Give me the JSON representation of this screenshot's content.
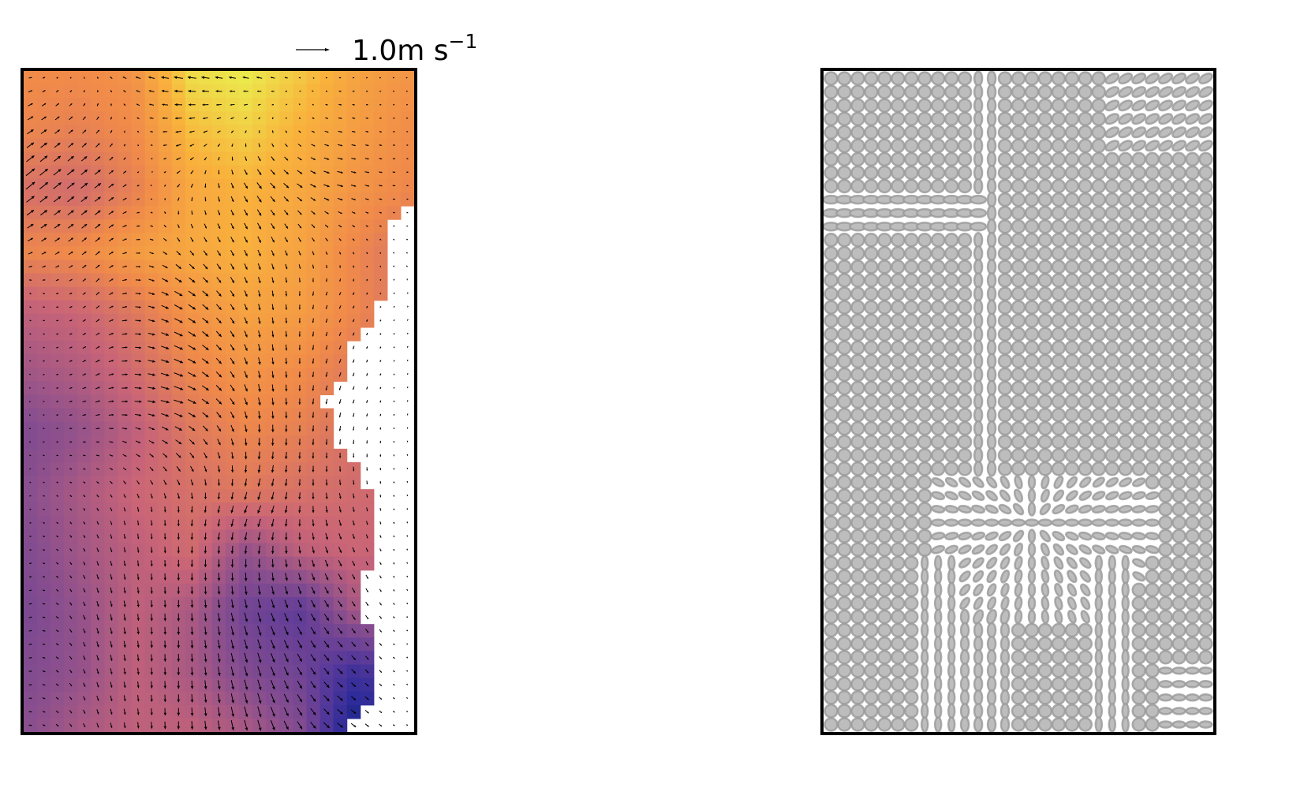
{
  "chart_data": [
    {
      "type": "heatmap",
      "panel": "left",
      "overlay": "quiver",
      "colormap": "plasma-like",
      "colormap_stops": [
        "#0d2b4a",
        "#2a2a9a",
        "#5a3a9a",
        "#8a4f8e",
        "#c86478",
        "#f08a4a",
        "#f9b23c",
        "#e8f550"
      ],
      "grid_cols": 29,
      "grid_rows": 49,
      "coarse_field": [
        [
          0.72,
          0.72,
          0.75,
          0.95,
          0.98,
          0.9,
          0.8,
          0.75
        ],
        [
          0.7,
          0.68,
          0.72,
          0.88,
          0.92,
          0.85,
          0.78,
          0.72
        ],
        [
          0.62,
          0.6,
          0.68,
          0.82,
          0.85,
          0.82,
          0.75,
          0.7
        ],
        [
          0.7,
          0.72,
          0.78,
          0.82,
          0.85,
          0.8,
          0.7,
          0.62
        ],
        [
          0.55,
          0.58,
          0.65,
          0.75,
          0.8,
          0.78,
          0.7,
          0.62
        ],
        [
          0.48,
          0.52,
          0.6,
          0.7,
          0.75,
          0.72,
          0.65,
          0.6
        ],
        [
          0.4,
          0.45,
          0.55,
          0.65,
          0.7,
          0.68,
          0.62,
          0.6
        ],
        [
          0.42,
          0.5,
          0.58,
          0.62,
          0.65,
          0.62,
          0.6,
          0.58
        ],
        [
          0.4,
          0.48,
          0.55,
          0.6,
          0.45,
          0.55,
          0.58,
          0.55
        ],
        [
          0.38,
          0.45,
          0.55,
          0.5,
          0.35,
          0.3,
          0.5,
          0.5
        ],
        [
          0.4,
          0.45,
          0.55,
          0.5,
          0.4,
          0.35,
          0.2,
          0.4
        ],
        [
          0.42,
          0.5,
          0.55,
          0.55,
          0.5,
          0.4,
          0.05,
          0.3
        ]
      ],
      "nan_start_col_per_row": [
        29,
        29,
        29,
        29,
        29,
        29,
        29,
        29,
        29,
        29,
        28,
        27,
        27,
        27,
        27,
        27,
        27,
        26,
        26,
        25,
        24,
        24,
        24,
        23,
        22,
        23,
        23,
        23,
        24,
        25,
        25,
        26,
        26,
        26,
        26,
        26,
        26,
        25,
        25,
        25,
        25,
        26,
        26,
        26,
        26,
        26,
        26,
        25,
        24
      ],
      "quiver_u": [
        [
          0.1,
          -0.05,
          -0.3,
          -0.2,
          0.05,
          0.0
        ],
        [
          0.3,
          0.2,
          -0.1,
          0.15,
          0.2,
          0.05
        ],
        [
          0.05,
          0.1,
          0.25,
          0.05,
          -0.05,
          0.0
        ],
        [
          0.0,
          0.15,
          0.3,
          0.05,
          -0.05,
          0.0
        ],
        [
          0.05,
          0.05,
          0.0,
          -0.1,
          0.05,
          0.0
        ],
        [
          0.1,
          0.05,
          0.0,
          0.1,
          0.15,
          0.0
        ],
        [
          0.1,
          0.05,
          0.0,
          0.1,
          0.2,
          0.0
        ]
      ],
      "quiver_v": [
        [
          0.0,
          0.05,
          0.05,
          0.05,
          0.0,
          0.0
        ],
        [
          0.25,
          0.15,
          -0.1,
          -0.2,
          -0.05,
          0.0
        ],
        [
          -0.05,
          0.1,
          -0.15,
          -0.2,
          -0.1,
          0.0
        ],
        [
          0.0,
          0.05,
          -0.1,
          -0.25,
          -0.15,
          0.0
        ],
        [
          0.0,
          -0.1,
          -0.2,
          -0.25,
          -0.2,
          0.0
        ],
        [
          0.05,
          -0.2,
          -0.25,
          -0.3,
          -0.2,
          0.0
        ],
        [
          0.0,
          -0.15,
          -0.25,
          -0.35,
          -0.15,
          0.0
        ]
      ],
      "quiver_key": {
        "value": 1.0,
        "label": "1.0m s",
        "exponent": "−1"
      }
    },
    {
      "type": "ellipse-field",
      "panel": "right",
      "grid_cols": 29,
      "grid_rows": 49,
      "fill": "#bdbdbd",
      "edge": "#999999"
    }
  ]
}
